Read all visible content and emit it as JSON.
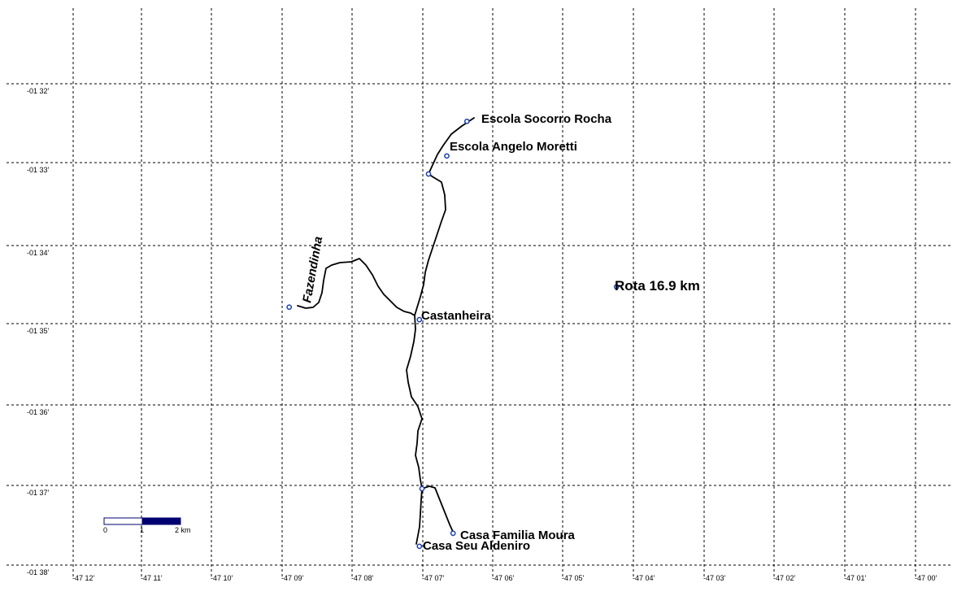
{
  "map": {
    "latitude_labels": [
      "-01 32'",
      "-01 33'",
      "-01 34'",
      "-01 35'",
      "-01 36'",
      "-01 37'",
      "-01 38'"
    ],
    "longitude_labels": [
      "-47 12'",
      "-47 11'",
      "-47 10'",
      "-47 09'",
      "-47 08'",
      "-47 07'",
      "-47 06'",
      "-47 05'",
      "-47 04'",
      "-47 03'",
      "-47 02'",
      "-47 01'",
      "-47 00'"
    ],
    "places": [
      {
        "name": "Escola Socorro Rocha",
        "lon": -47.1065,
        "lat": -1.5411
      },
      {
        "name": "Escola Angelo Moretti",
        "lon": -47.1113,
        "lat": -1.5483
      },
      {
        "name": "Castanheira",
        "lon": -47.1178,
        "lat": -1.5823
      },
      {
        "name": "Fazendinha",
        "lon": -47.1487,
        "lat": -1.5797
      },
      {
        "name": "Rota 16.9 km",
        "lon": -47.071,
        "lat": -1.5755
      },
      {
        "name": "Casa Familia Moura",
        "lon": -47.1098,
        "lat": -1.6267
      },
      {
        "name": "Casa Seu Aldeniro",
        "lon": -47.1178,
        "lat": -1.6294
      }
    ],
    "route_label": "Rota 16.9 km",
    "scale_bar": {
      "labels": [
        "0",
        "1",
        "2 km"
      ],
      "fill_color": "#000070"
    },
    "colors": {
      "route": "#000000",
      "marker_outline": "#1a3fb0",
      "grid": "#000000"
    }
  }
}
